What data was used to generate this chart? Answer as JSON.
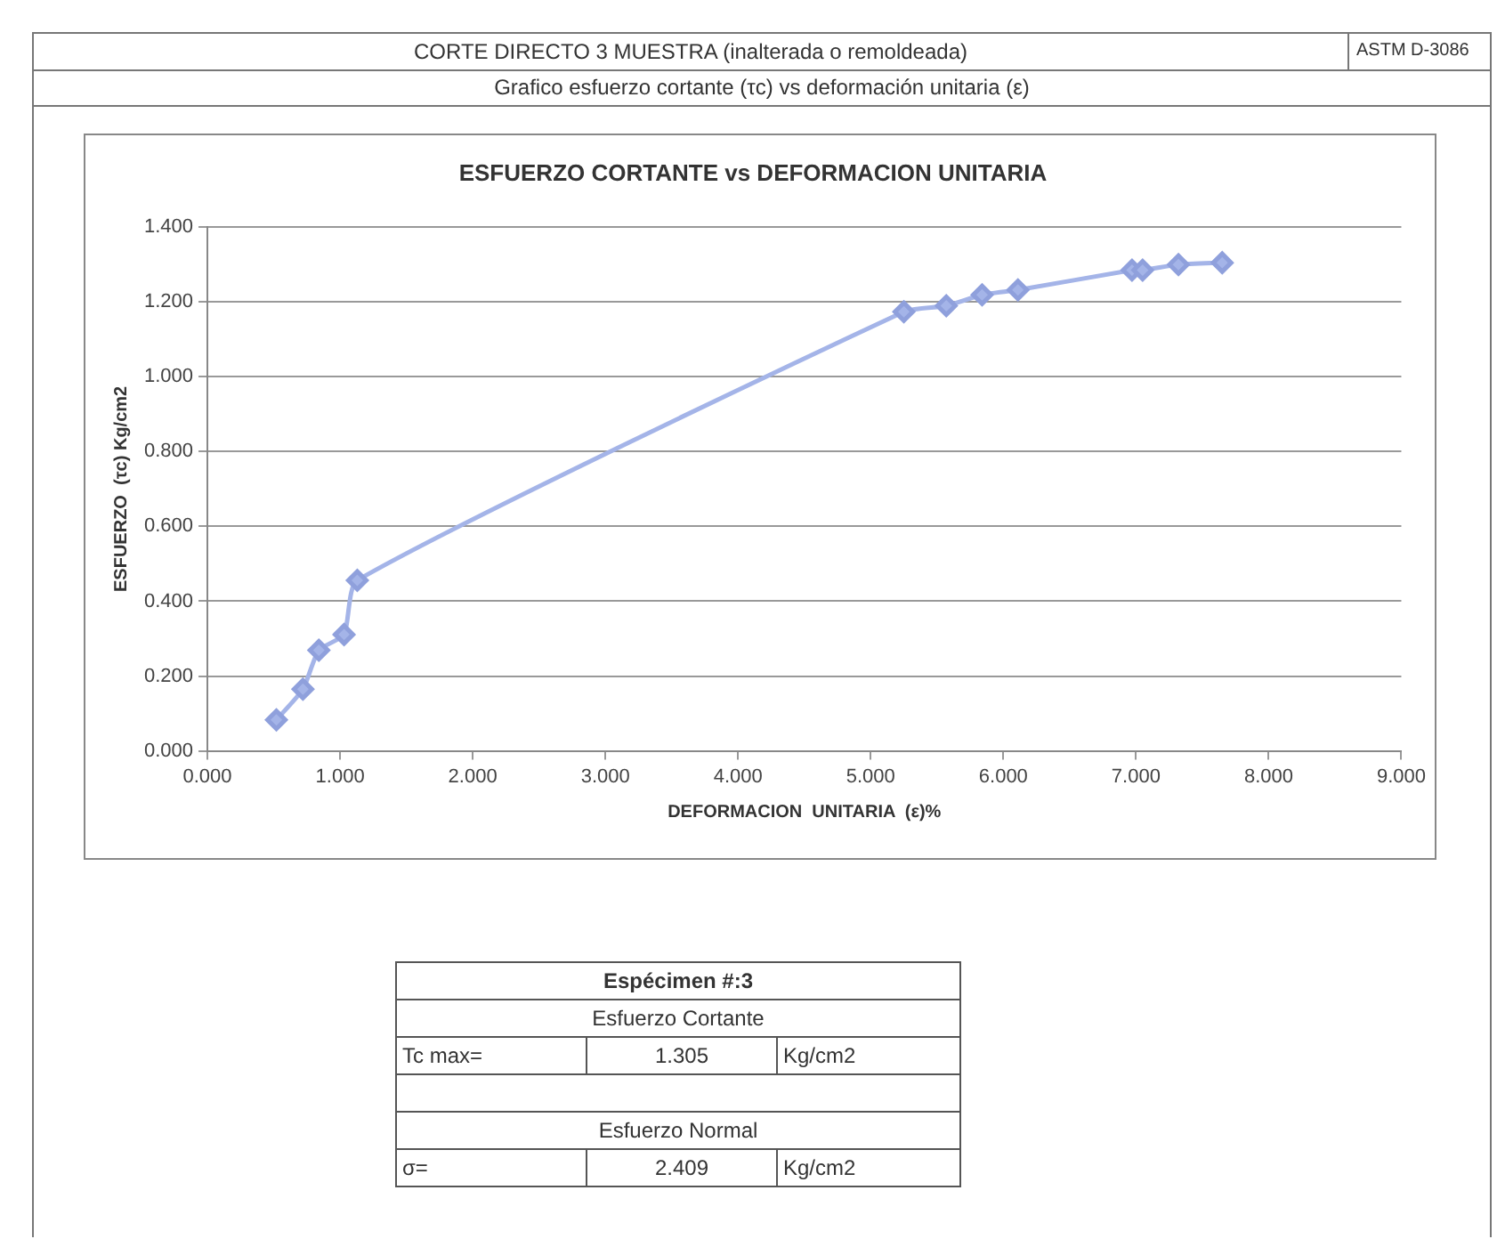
{
  "chart_data": {
    "type": "line",
    "title": "ESFUERZO CORTANTE vs DEFORMACION UNITARIA",
    "xlabel": "DEFORMACION  UNITARIA  (ε)%",
    "ylabel": "ESFUERZO  (τc) Kg/cm2",
    "x": [
      0.52,
      0.72,
      0.84,
      1.03,
      1.13,
      5.25,
      5.57,
      5.84,
      6.11,
      6.97,
      7.05,
      7.32,
      7.65
    ],
    "series": [
      {
        "color": "#a4b4e8",
        "values": [
          0.083,
          0.165,
          0.269,
          0.311,
          0.456,
          1.174,
          1.19,
          1.219,
          1.232,
          1.285,
          1.285,
          1.3,
          1.305
        ]
      }
    ],
    "marker": "diamond",
    "line_style": "solid",
    "grid": "y",
    "legend": false,
    "xlim": [
      0,
      9
    ],
    "ylim": [
      0,
      1.4
    ],
    "xticks": [
      {
        "value": 0,
        "label": "0.000"
      },
      {
        "value": 1,
        "label": "1.000"
      },
      {
        "value": 2,
        "label": "2.000"
      },
      {
        "value": 3,
        "label": "3.000"
      },
      {
        "value": 4,
        "label": "4.000"
      },
      {
        "value": 5,
        "label": "5.000"
      },
      {
        "value": 6,
        "label": "6.000"
      },
      {
        "value": 7,
        "label": "7.000"
      },
      {
        "value": 8,
        "label": "8.000"
      },
      {
        "value": 9,
        "label": "9.000"
      }
    ],
    "yticks": [
      {
        "value": 0,
        "label": "0.000"
      },
      {
        "value": 0.2,
        "label": "0.200"
      },
      {
        "value": 0.4,
        "label": "0.400"
      },
      {
        "value": 0.6,
        "label": "0.600"
      },
      {
        "value": 0.8,
        "label": "0.800"
      },
      {
        "value": 1,
        "label": "1.000"
      },
      {
        "value": 1.2,
        "label": "1.200"
      },
      {
        "value": 1.4,
        "label": "1.400"
      }
    ],
    "annotations": [
      "CORTE DIRECTO 3 MUESTRA (inalterada o remoldeada)",
      "ASTM D-3086",
      "Grafico esfuerzo cortante (τc) vs deformación unitaria (ε)",
      "Espécimen #:3",
      "Esfuerzo Cortante",
      "Tc max=",
      "1.305",
      "Kg/cm2",
      "Esfuerzo Normal",
      "σ=",
      "2.409",
      "Kg/cm2"
    ]
  }
}
